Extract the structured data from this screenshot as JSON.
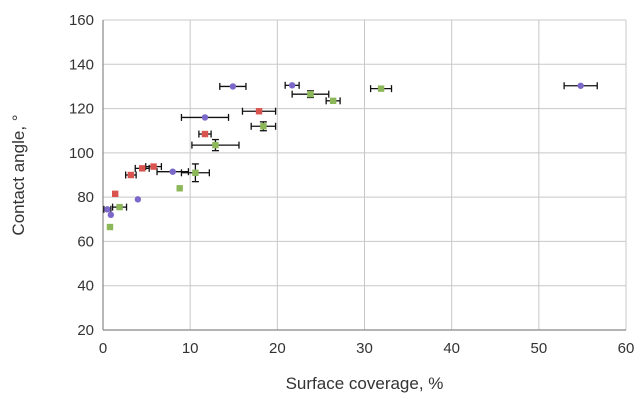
{
  "chart_data": {
    "type": "scatter",
    "title": "",
    "xlabel": "Surface coverage, %",
    "ylabel": "Contact angle, °",
    "xlim": [
      0,
      60
    ],
    "ylim": [
      20,
      160
    ],
    "x_ticks": [
      "0",
      "10",
      "20",
      "30",
      "40",
      "50",
      "60"
    ],
    "y_ticks": [
      "20",
      "40",
      "60",
      "80",
      "100",
      "120",
      "140",
      "160"
    ],
    "grid": true,
    "legend": "none",
    "series": [
      {
        "color": "#7b68c8",
        "marker": "circle",
        "points": [
          {
            "x": 0.5,
            "y": 74.5,
            "xerr": 0.4
          },
          {
            "x": 0.9,
            "y": 72.0,
            "xerr": 0
          },
          {
            "x": 4.0,
            "y": 79.0,
            "xerr": 0
          },
          {
            "x": 8.0,
            "y": 91.5,
            "xerr": 1.8
          },
          {
            "x": 11.7,
            "y": 116.0,
            "xerr": 2.7
          },
          {
            "x": 14.9,
            "y": 130.0,
            "xerr": 1.5
          },
          {
            "x": 21.7,
            "y": 130.5,
            "xerr": 0.8
          },
          {
            "x": 54.8,
            "y": 130.3,
            "xerr": 1.9
          }
        ]
      },
      {
        "color": "#d9534f",
        "marker": "square",
        "points": [
          {
            "x": 1.4,
            "y": 81.5,
            "xerr": 0
          },
          {
            "x": 3.2,
            "y": 90.0,
            "xerr": 0.6
          },
          {
            "x": 4.5,
            "y": 93.0,
            "xerr": 0.8
          },
          {
            "x": 5.8,
            "y": 93.8,
            "xerr": 0.9
          },
          {
            "x": 11.7,
            "y": 108.5,
            "xerr": 0.7
          },
          {
            "x": 17.9,
            "y": 118.8,
            "xerr": 1.9
          }
        ]
      },
      {
        "color": "#8db85a",
        "marker": "square",
        "points": [
          {
            "x": 0.8,
            "y": 66.5,
            "xerr": 0
          },
          {
            "x": 1.9,
            "y": 75.5,
            "xerr": 0.8
          },
          {
            "x": 8.8,
            "y": 84.0,
            "xerr": 0
          },
          {
            "x": 10.6,
            "y": 91.0,
            "xerr": 1.6,
            "yerr": 4.0
          },
          {
            "x": 12.9,
            "y": 103.5,
            "xerr": 2.7,
            "yerr": 2.5
          },
          {
            "x": 18.4,
            "y": 112.0,
            "xerr": 1.4,
            "yerr": 2.0
          },
          {
            "x": 23.8,
            "y": 126.5,
            "xerr": 2.1,
            "yerr": 1.5
          },
          {
            "x": 26.4,
            "y": 123.5,
            "xerr": 0.8
          },
          {
            "x": 31.9,
            "y": 129.0,
            "xerr": 1.2
          }
        ]
      }
    ]
  }
}
